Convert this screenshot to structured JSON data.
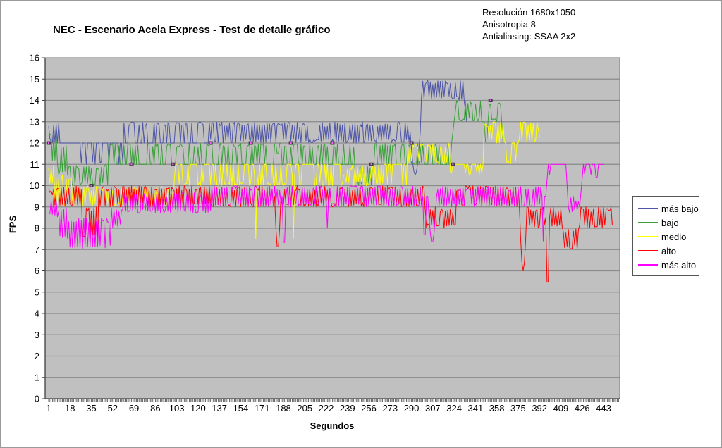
{
  "header": {
    "title": "NEC - Escenario Acela Express - Test de detalle gráfico",
    "info_lines": [
      "Resolución 1680x1050",
      "Anisotropia 8",
      "Antialiasing: SSAA 2x2"
    ]
  },
  "colors": {
    "plot_bg": "#c0c0c0",
    "gridline": "#8a8a8a",
    "axis": "#404040",
    "marker": "#3f3f3f",
    "marker_center": "#ff5fff",
    "text": "#000000"
  },
  "chart_data": {
    "type": "line",
    "title": "NEC - Escenario Acela Express - Test de detalle gráfico",
    "xlabel": "Segundos",
    "ylabel": "FPS",
    "ylim": [
      0,
      16
    ],
    "xlim": [
      1,
      455
    ],
    "y_ticks": [
      0,
      1,
      2,
      3,
      4,
      5,
      6,
      7,
      8,
      9,
      10,
      11,
      12,
      13,
      14,
      15,
      16
    ],
    "x_ticks": [
      1,
      18,
      35,
      52,
      69,
      86,
      103,
      120,
      137,
      154,
      171,
      188,
      205,
      222,
      239,
      256,
      273,
      290,
      307,
      324,
      341,
      358,
      375,
      392,
      409,
      426,
      443
    ],
    "grid": true,
    "legend_position": "right",
    "point_markers": [
      [
        1,
        12
      ],
      [
        35,
        10
      ],
      [
        67,
        11
      ],
      [
        100,
        11
      ],
      [
        130,
        12
      ],
      [
        162,
        12
      ],
      [
        194,
        12
      ],
      [
        227,
        12
      ],
      [
        258,
        11
      ],
      [
        290,
        12
      ],
      [
        323,
        11
      ],
      [
        353,
        14
      ]
    ],
    "series": [
      {
        "name": "más bajo",
        "color": "#4f55a7",
        "end_second": 334,
        "segments": [
          [
            1,
            9,
            12,
            13,
            "zig",
            0
          ],
          [
            10,
            33,
            11,
            12,
            "flat",
            0.15
          ],
          [
            34,
            42,
            11,
            12,
            "flat",
            0.5
          ],
          [
            43,
            60,
            11,
            12,
            "flat",
            0.2
          ],
          [
            61,
            78,
            12,
            13,
            "up",
            0.5
          ],
          [
            79,
            128,
            12,
            13,
            "up",
            0.45
          ],
          [
            129,
            288,
            12,
            13,
            "zig",
            0
          ],
          [
            289,
            297,
            10.5,
            12.5,
            "vee",
            0
          ],
          [
            298,
            331,
            14,
            15,
            "zig",
            0
          ],
          [
            332,
            334,
            13,
            14,
            "rampd",
            0
          ]
        ]
      },
      {
        "name": "bajo",
        "color": "#3aa13a",
        "end_second": 363,
        "segments": [
          [
            1,
            8,
            11,
            12.5,
            "zig",
            0
          ],
          [
            9,
            16,
            10.5,
            12,
            "zig",
            0
          ],
          [
            17,
            48,
            10,
            11,
            "zig",
            0
          ],
          [
            49,
            63,
            11,
            12,
            "up",
            0.5
          ],
          [
            64,
            92,
            11,
            12,
            "up",
            0.5
          ],
          [
            93,
            94,
            8.5,
            11,
            "vee",
            0
          ],
          [
            95,
            170,
            11,
            12,
            "up",
            0.5
          ],
          [
            171,
            182,
            11,
            12,
            "up",
            0.4
          ],
          [
            183,
            184,
            10,
            11.5,
            "vee",
            0
          ],
          [
            185,
            244,
            11,
            12,
            "up",
            0.5
          ],
          [
            245,
            258,
            10,
            11,
            "zig",
            0
          ],
          [
            259,
            286,
            11,
            12,
            "up",
            0.4
          ],
          [
            287,
            300,
            11,
            12,
            "zig",
            0
          ],
          [
            301,
            321,
            11,
            12,
            "up",
            0.4
          ],
          [
            322,
            326,
            12,
            14,
            "ramp",
            0
          ],
          [
            327,
            345,
            13,
            14,
            "zig",
            0
          ],
          [
            346,
            351,
            12,
            13,
            "flat",
            0.5
          ],
          [
            352,
            360,
            13,
            14,
            "zig",
            0
          ],
          [
            361,
            363,
            12,
            13.8,
            "rampd",
            0
          ]
        ]
      },
      {
        "name": "medio",
        "color": "#ffff00",
        "end_second": 392,
        "segments": [
          [
            1,
            5,
            10,
            11,
            "zig",
            0
          ],
          [
            6,
            20,
            9,
            10.5,
            "zig",
            0
          ],
          [
            21,
            60,
            9,
            10,
            "zig",
            0
          ],
          [
            61,
            100,
            9,
            10,
            "zig",
            0
          ],
          [
            101,
            135,
            10,
            11,
            "flat",
            0.45
          ],
          [
            136,
            164,
            10,
            11,
            "flat",
            0.35
          ],
          [
            165,
            167,
            7.5,
            10.5,
            "vee",
            0
          ],
          [
            168,
            194,
            10,
            11,
            "flat",
            0.4
          ],
          [
            195,
            197,
            7.5,
            10.5,
            "vee",
            0
          ],
          [
            198,
            235,
            10,
            11,
            "flat",
            0.35
          ],
          [
            236,
            237,
            9,
            10.5,
            "vee",
            0
          ],
          [
            238,
            262,
            10,
            11,
            "zig",
            0
          ],
          [
            263,
            286,
            10,
            11,
            "flat",
            0.4
          ],
          [
            287,
            320,
            11,
            12,
            "zig",
            0
          ],
          [
            321,
            347,
            10.5,
            11,
            "flat",
            0.3
          ],
          [
            348,
            364,
            12,
            13,
            "zig",
            0
          ],
          [
            365,
            375,
            11,
            12,
            "flat",
            0.4
          ],
          [
            376,
            389,
            12,
            13,
            "zig",
            0
          ],
          [
            390,
            392,
            12.3,
            13,
            "rampd",
            0
          ]
        ]
      },
      {
        "name": "alto",
        "color": "#ff0000",
        "end_second": 450,
        "segments": [
          [
            1,
            4,
            9.5,
            10,
            "zig",
            0
          ],
          [
            5,
            27,
            9,
            10,
            "zig",
            0
          ],
          [
            28,
            40,
            7.5,
            9,
            "zig",
            0
          ],
          [
            41,
            95,
            9,
            10,
            "zig",
            0
          ],
          [
            96,
            180,
            9,
            10,
            "zig",
            0
          ],
          [
            181,
            186,
            7,
            9.5,
            "vee",
            0
          ],
          [
            187,
            240,
            9,
            10,
            "zig",
            0
          ],
          [
            241,
            300,
            9,
            10,
            "zig",
            0
          ],
          [
            301,
            325,
            8,
            9,
            "zig",
            0
          ],
          [
            326,
            375,
            9,
            10,
            "zig",
            0
          ],
          [
            376,
            382,
            6,
            9,
            "vee",
            0
          ],
          [
            383,
            396,
            8,
            9,
            "zig",
            0
          ],
          [
            397,
            400,
            5,
            8.5,
            "vee",
            0
          ],
          [
            401,
            410,
            8,
            9,
            "zig",
            0
          ],
          [
            411,
            423,
            7,
            8,
            "zig",
            0
          ],
          [
            424,
            450,
            8,
            9,
            "zig",
            0
          ]
        ]
      },
      {
        "name": "más alto",
        "color": "#ff00ff",
        "end_second": 443,
        "segments": [
          [
            1,
            8,
            8.5,
            9.5,
            "zig",
            0
          ],
          [
            9,
            16,
            7.5,
            9,
            "zig",
            0
          ],
          [
            17,
            50,
            7,
            8.5,
            "zig",
            0
          ],
          [
            51,
            60,
            8,
            9,
            "zig",
            0
          ],
          [
            61,
            130,
            8.7,
            9.7,
            "zig",
            0
          ],
          [
            131,
            186,
            9,
            10,
            "zig",
            0
          ],
          [
            187,
            190,
            7,
            9.5,
            "vee",
            0
          ],
          [
            191,
            221,
            9,
            10,
            "zig",
            0
          ],
          [
            222,
            224,
            8,
            9.5,
            "vee",
            0
          ],
          [
            225,
            298,
            9,
            10,
            "zig",
            0
          ],
          [
            299,
            302,
            7.4,
            9.5,
            "vee",
            0
          ],
          [
            303,
            310,
            7.3,
            9.5,
            "vee",
            0
          ],
          [
            311,
            393,
            9,
            10,
            "zig",
            0
          ],
          [
            394,
            396,
            7.4,
            9.5,
            "vee",
            0
          ],
          [
            397,
            399,
            9.5,
            11,
            "ramp",
            0
          ],
          [
            400,
            404,
            10.4,
            11,
            "flat",
            0.25
          ],
          [
            405,
            406,
            11,
            12,
            "peak",
            0
          ],
          [
            407,
            412,
            11,
            11,
            "flat",
            0
          ],
          [
            413,
            415,
            9,
            11,
            "rampd",
            0
          ],
          [
            416,
            423,
            8.7,
            9.5,
            "zig",
            0
          ],
          [
            424,
            427,
            9,
            11,
            "ramp",
            0
          ],
          [
            428,
            433,
            10.4,
            11,
            "flat",
            0.2
          ],
          [
            434,
            435,
            11,
            12,
            "peak",
            0
          ],
          [
            436,
            439,
            10.3,
            11,
            "vee",
            0
          ],
          [
            440,
            443,
            11,
            11,
            "flat",
            0
          ]
        ]
      }
    ]
  }
}
